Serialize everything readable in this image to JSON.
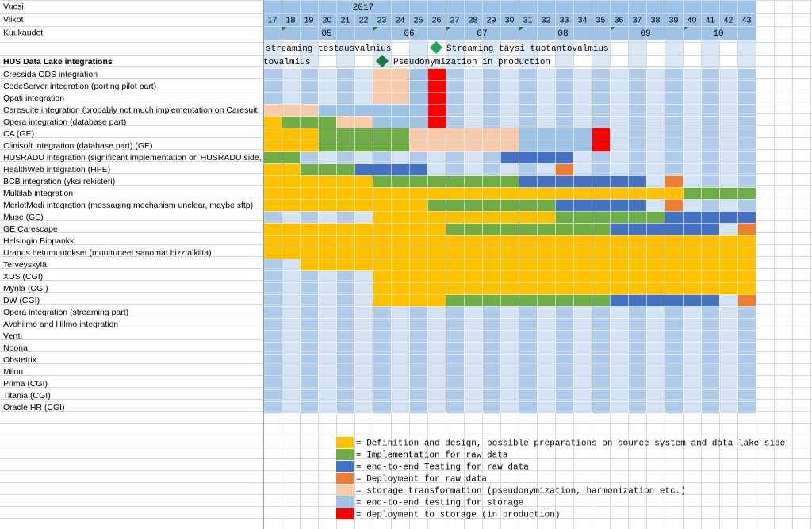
{
  "sheet": {
    "header_labels": [
      "Vuosi",
      "Viikot",
      "Kuukaudet"
    ],
    "year": "2017",
    "weeks": [
      17,
      18,
      19,
      20,
      21,
      22,
      23,
      24,
      25,
      26,
      27,
      28,
      29,
      30,
      31,
      32,
      33,
      34,
      35,
      36,
      37,
      38,
      39,
      40,
      41,
      42,
      43
    ],
    "months": [
      "05",
      "06",
      "07",
      "08",
      "09",
      "10"
    ],
    "milestones": [
      {
        "text": "streaming testausvalmius",
        "color": "#1fa85a"
      },
      {
        "text": "Streaming täysi tuotantovalmius"
      },
      {
        "text": "tovalmius"
      },
      {
        "text": "Pseudonymization in production",
        "color": "#1d7a3e"
      }
    ],
    "title": "HUS Data Lake integrations",
    "legend": [
      {
        "label": "= Definition and design, possible preparations on source system and data lake side",
        "color": "#ffc000"
      },
      {
        "label": "= Implementation for raw data",
        "color": "#70ad47"
      },
      {
        "label": "= end-to-end Testing for raw data",
        "color": "#4472c4"
      },
      {
        "label": "= Deployment for raw data",
        "color": "#ed7d31"
      },
      {
        "label": "= storage transformation (pseudonymization, harmonization etc.)",
        "color": "#f8cbad"
      },
      {
        "label": "= end-to-end testing for storage",
        "color": "#9dc3e6"
      },
      {
        "label": "= deployment to storage (in production)",
        "color": "#ff0000"
      }
    ],
    "rows": [
      {
        "label": "Cressida ODS integration",
        "segments": [
          {
            "from": 23,
            "to": 24,
            "legend": 4
          },
          {
            "from": 25,
            "to": 25,
            "legend": 5
          },
          {
            "from": 26,
            "to": 26,
            "legend": 6
          }
        ]
      },
      {
        "label": "CodeServer integration (porting pilot part)",
        "segments": [
          {
            "from": 23,
            "to": 24,
            "legend": 4
          },
          {
            "from": 25,
            "to": 25,
            "legend": 5
          },
          {
            "from": 26,
            "to": 26,
            "legend": 6
          }
        ]
      },
      {
        "label": "Qpati integration",
        "segments": [
          {
            "from": 23,
            "to": 24,
            "legend": 4
          },
          {
            "from": 25,
            "to": 25,
            "legend": 5
          },
          {
            "from": 26,
            "to": 26,
            "legend": 6
          }
        ]
      },
      {
        "label": "Caresuite integration (probably not much implementation on Caresuit",
        "segments": [
          {
            "from": 17,
            "to": 19,
            "legend": 4
          },
          {
            "from": 20,
            "to": 25,
            "legend": 5
          },
          {
            "from": 26,
            "to": 26,
            "legend": 6
          }
        ]
      },
      {
        "label": "Opera integration (database part)",
        "segments": [
          {
            "from": 17,
            "to": 17,
            "legend": 0
          },
          {
            "from": 18,
            "to": 20,
            "legend": 1
          },
          {
            "from": 21,
            "to": 22,
            "legend": 4
          },
          {
            "from": 23,
            "to": 25,
            "legend": 5
          },
          {
            "from": 26,
            "to": 26,
            "legend": 6
          }
        ]
      },
      {
        "label": "CA (GE)",
        "segments": [
          {
            "from": 17,
            "to": 19,
            "legend": 0
          },
          {
            "from": 20,
            "to": 24,
            "legend": 1
          },
          {
            "from": 25,
            "to": 30,
            "legend": 4
          },
          {
            "from": 31,
            "to": 34,
            "legend": 5
          },
          {
            "from": 35,
            "to": 35,
            "legend": 6
          }
        ]
      },
      {
        "label": "Clinisoft integration (database part) (GE)",
        "segments": [
          {
            "from": 17,
            "to": 19,
            "legend": 0
          },
          {
            "from": 20,
            "to": 24,
            "legend": 1
          },
          {
            "from": 25,
            "to": 30,
            "legend": 4
          },
          {
            "from": 31,
            "to": 34,
            "legend": 5
          },
          {
            "from": 35,
            "to": 35,
            "legend": 6
          }
        ]
      },
      {
        "label": "HUSRADU integration (significant implementation on HUSRADU side,",
        "segments": [
          {
            "from": 17,
            "to": 18,
            "legend": 1
          },
          {
            "from": 30,
            "to": 33,
            "legend": 2
          }
        ]
      },
      {
        "label": "HealthWeb integration (HPE)",
        "segments": [
          {
            "from": 17,
            "to": 18,
            "legend": 0
          },
          {
            "from": 19,
            "to": 21,
            "legend": 1
          },
          {
            "from": 22,
            "to": 25,
            "legend": 2
          },
          {
            "from": 33,
            "to": 33,
            "legend": 3
          }
        ]
      },
      {
        "label": "BCB integration (yksi rekisteri)",
        "segments": [
          {
            "from": 17,
            "to": 22,
            "legend": 0
          },
          {
            "from": 23,
            "to": 30,
            "legend": 1
          },
          {
            "from": 31,
            "to": 37,
            "legend": 2
          },
          {
            "from": 39,
            "to": 39,
            "legend": 3
          }
        ]
      },
      {
        "label": "Multilab integration",
        "segments": [
          {
            "from": 17,
            "to": 39,
            "legend": 0
          },
          {
            "from": 40,
            "to": 43,
            "legend": 1
          }
        ]
      },
      {
        "label": "MerlotMedi integration (messaging mechanism unclear, maybe sftp)",
        "segments": [
          {
            "from": 17,
            "to": 25,
            "legend": 0
          },
          {
            "from": 26,
            "to": 32,
            "legend": 1
          },
          {
            "from": 33,
            "to": 37,
            "legend": 2
          },
          {
            "from": 39,
            "to": 39,
            "legend": 3
          }
        ]
      },
      {
        "label": "Muse (GE)",
        "segments": [
          {
            "from": 23,
            "to": 32,
            "legend": 0
          },
          {
            "from": 33,
            "to": 38,
            "legend": 1
          },
          {
            "from": 39,
            "to": 43,
            "legend": 2
          }
        ]
      },
      {
        "label": "GE Carescape",
        "segments": [
          {
            "from": 17,
            "to": 26,
            "legend": 0
          },
          {
            "from": 27,
            "to": 35,
            "legend": 1
          },
          {
            "from": 36,
            "to": 41,
            "legend": 2
          },
          {
            "from": 43,
            "to": 43,
            "legend": 3
          }
        ]
      },
      {
        "label": "Helsingin Biopankki",
        "segments": [
          {
            "from": 17,
            "to": 43,
            "legend": 0
          }
        ]
      },
      {
        "label": "Uranus hetumuutokset (muuttuneet sanomat bizztalkilta)",
        "segments": [
          {
            "from": 17,
            "to": 43,
            "legend": 0
          }
        ]
      },
      {
        "label": "Terveyskylä",
        "segments": [
          {
            "from": 19,
            "to": 43,
            "legend": 0
          }
        ]
      },
      {
        "label": "XDS (CGI)",
        "segments": [
          {
            "from": 23,
            "to": 43,
            "legend": 0
          }
        ]
      },
      {
        "label": "Mynla (CGI)",
        "segments": [
          {
            "from": 23,
            "to": 43,
            "legend": 0
          }
        ]
      },
      {
        "label": "DW (CGI)",
        "segments": [
          {
            "from": 23,
            "to": 26,
            "legend": 0
          },
          {
            "from": 27,
            "to": 35,
            "legend": 1
          },
          {
            "from": 36,
            "to": 41,
            "legend": 2
          },
          {
            "from": 43,
            "to": 43,
            "legend": 3
          }
        ]
      },
      {
        "label": "Opera integration (streaming part)",
        "segments": []
      },
      {
        "label": "Avohilmo and Hilmo integration",
        "segments": []
      },
      {
        "label": "Vertti",
        "segments": []
      },
      {
        "label": "Noona",
        "segments": []
      },
      {
        "label": "Obstetrix",
        "segments": []
      },
      {
        "label": "Milou",
        "segments": []
      },
      {
        "label": "Prima (CGI)",
        "segments": []
      },
      {
        "label": "Titania (CGI)",
        "segments": []
      },
      {
        "label": "Oracle HR (CGI)",
        "segments": []
      }
    ]
  }
}
